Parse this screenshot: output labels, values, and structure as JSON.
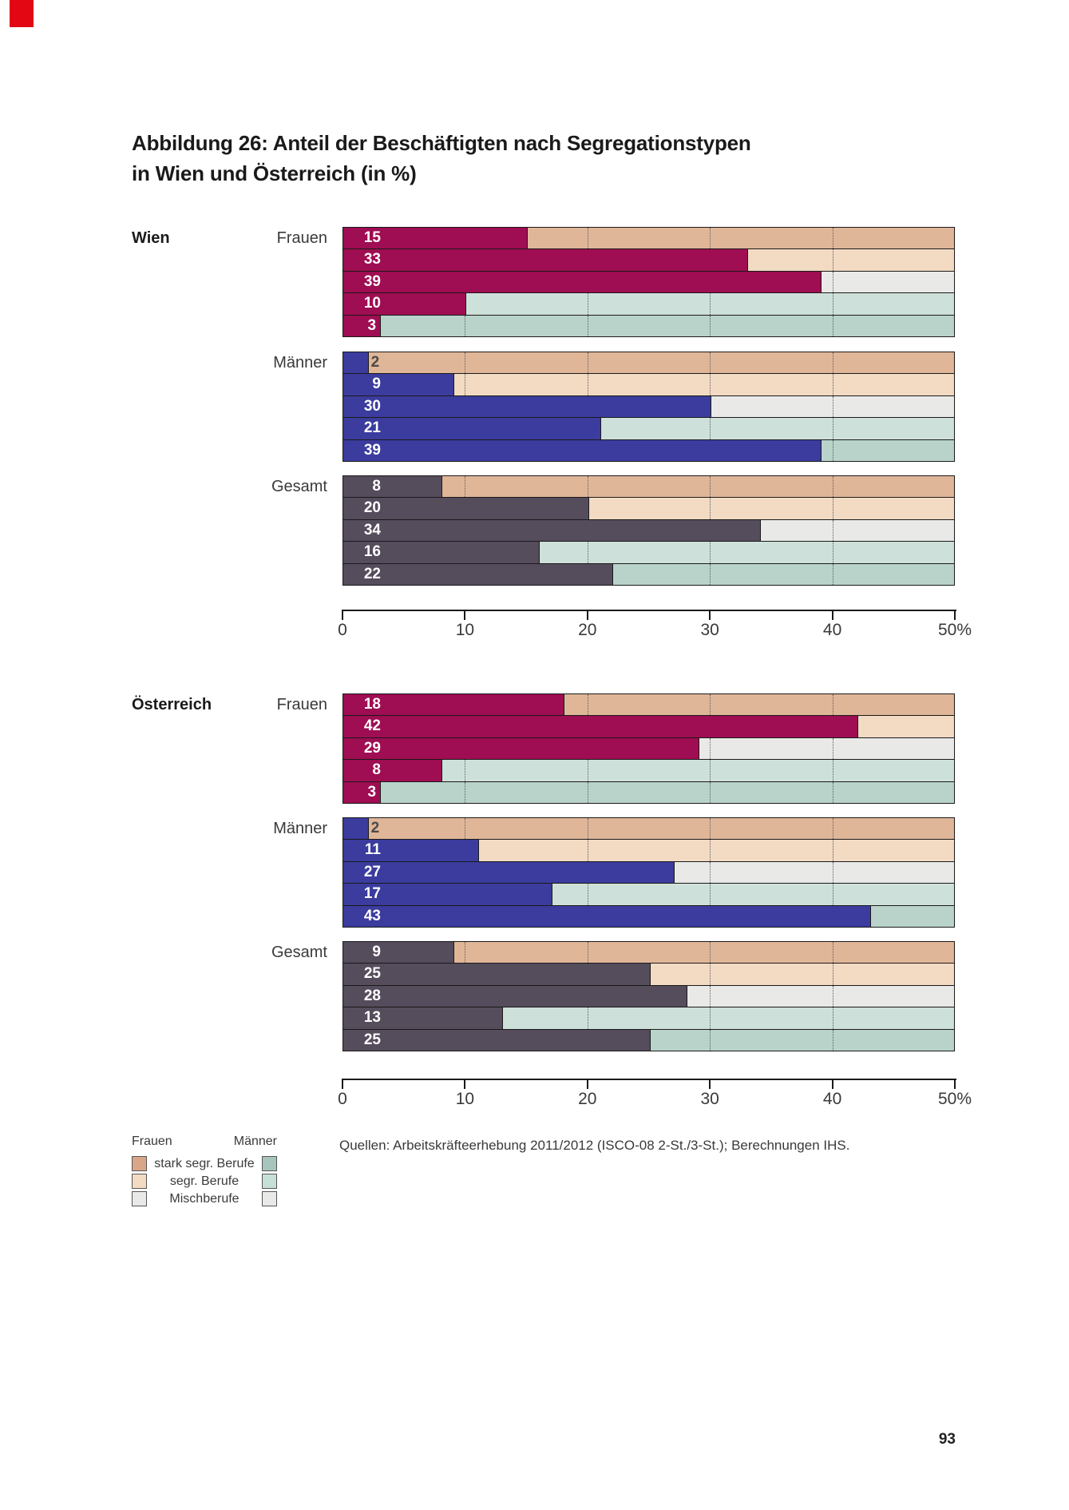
{
  "page": {
    "corner_color": "#e30613",
    "page_number": "93",
    "title_line1": "Abbildung 26: Anteil der Beschäftigten nach Segregationstypen",
    "title_line2": "in Wien und Österreich (in %)"
  },
  "source_note": "Quellen: Arbeitskräfteerhebung 2011/2012 (ISCO-08 2-St./3-St.); Berechnungen IHS.",
  "legend": {
    "col_headers": [
      "Frauen",
      "Männer"
    ],
    "rows": [
      {
        "label": "stark segr. Berufe",
        "frauen_color": "#d9a787",
        "maenner_color": "#a7c5bc"
      },
      {
        "label": "segr. Berufe",
        "frauen_color": "#f2dac3",
        "maenner_color": "#c6e0d8"
      },
      {
        "label": "Mischberufe",
        "frauen_color": "#e9e9e7",
        "maenner_color": "#e9e9e7"
      }
    ]
  },
  "chart_data": {
    "type": "bar",
    "title": "Abbildung 26: Anteil der Beschäftigten nach Segregationstypen in Wien und Österreich (in %)",
    "unit": "%",
    "xlim": [
      0,
      50
    ],
    "axis": {
      "ticks": [
        {
          "value": 0,
          "label": "0"
        },
        {
          "value": 10,
          "label": "10"
        },
        {
          "value": 20,
          "label": "20"
        },
        {
          "value": 30,
          "label": "30"
        },
        {
          "value": 40,
          "label": "40"
        },
        {
          "value": 50,
          "label": "50%"
        }
      ],
      "gridlines": [
        10,
        20,
        30,
        40
      ]
    },
    "row_backgrounds": [
      {
        "category": "stark segr. Berufe (Frauen)",
        "color": "#e0b698"
      },
      {
        "category": "segr. Berufe (Frauen)",
        "color": "#f2dac3"
      },
      {
        "category": "Mischberufe",
        "color": "#e9e9e7"
      },
      {
        "category": "segr. Berufe (Männer)",
        "color": "#cee0da"
      },
      {
        "category": "stark segr. Berufe (Männer)",
        "color": "#b9d3cb"
      }
    ],
    "blocks": [
      {
        "region": "Wien",
        "groups": [
          {
            "label": "Frauen",
            "color": "#9f0d52",
            "values": [
              15,
              33,
              39,
              10,
              3
            ]
          },
          {
            "label": "Männer",
            "color": "#3b3c9e",
            "values": [
              2,
              9,
              30,
              21,
              39
            ]
          },
          {
            "label": "Gesamt",
            "color": "#554c5c",
            "values": [
              8,
              20,
              34,
              16,
              22
            ]
          }
        ]
      },
      {
        "region": "Österreich",
        "groups": [
          {
            "label": "Frauen",
            "color": "#9f0d52",
            "values": [
              18,
              42,
              29,
              8,
              3
            ]
          },
          {
            "label": "Männer",
            "color": "#3b3c9e",
            "values": [
              2,
              11,
              27,
              17,
              43
            ]
          },
          {
            "label": "Gesamt",
            "color": "#554c5c",
            "values": [
              9,
              25,
              28,
              13,
              25
            ]
          }
        ]
      }
    ]
  }
}
